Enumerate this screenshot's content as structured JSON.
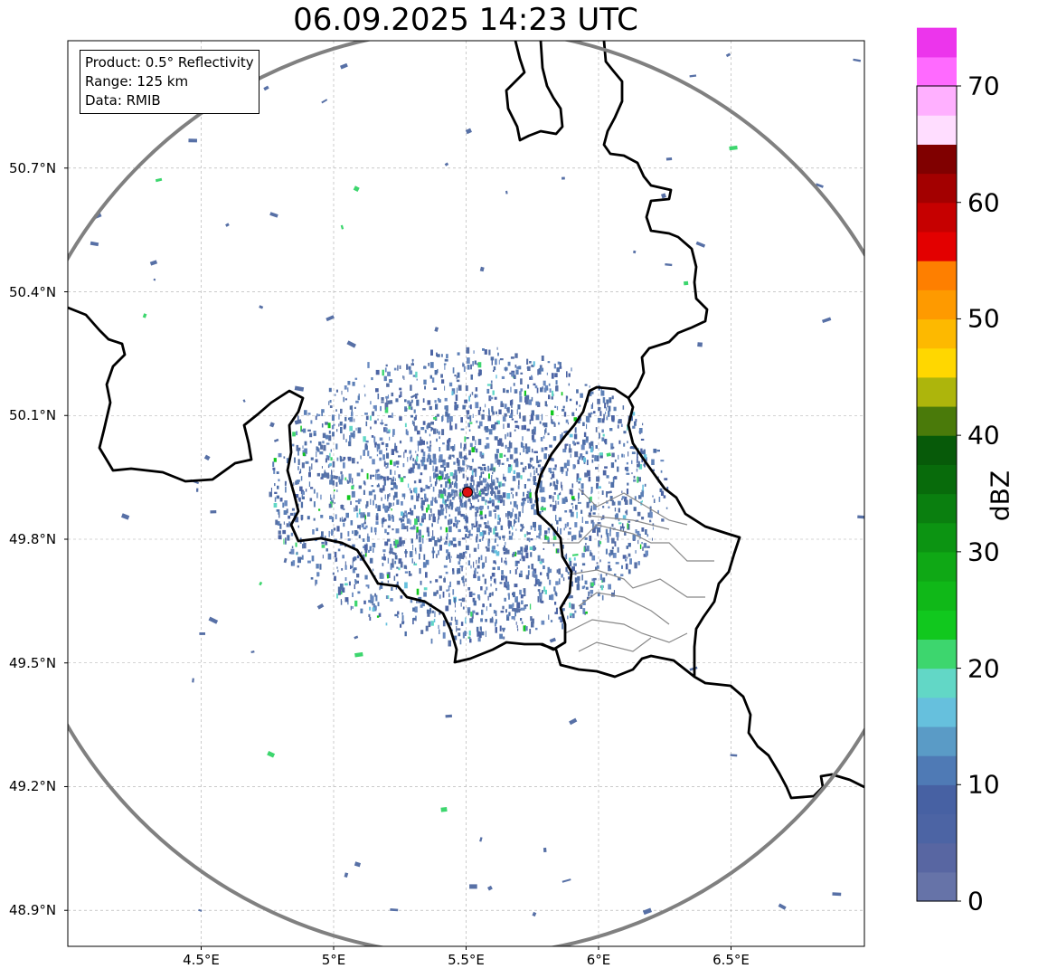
{
  "title": "06.09.2025 14:23 UTC",
  "info": {
    "product": "Product: 0.5° Reflectivity",
    "range": "Range: 125 km",
    "source": "Data: RMIB"
  },
  "map": {
    "lon_range": [
      4.0,
      7.0
    ],
    "lat_range": [
      48.8,
      51.0
    ],
    "lat_ticks": [
      "50.7°N",
      "50.4°N",
      "50.1°N",
      "49.8°N",
      "49.5°N",
      "49.2°N",
      "48.9°N"
    ],
    "lon_ticks": [
      "4.5°E",
      "5°E",
      "5.5°E",
      "6°E",
      "6.5°E"
    ],
    "radar_site": {
      "lon": 5.505,
      "lat": 49.914
    },
    "range_ring_km": 125,
    "grid": true
  },
  "colorbar": {
    "label": "dBZ",
    "ticks": [
      "0",
      "10",
      "20",
      "30",
      "40",
      "50",
      "60",
      "70"
    ],
    "range": [
      0,
      70
    ],
    "step": 2.5,
    "colors": [
      "#6673a8",
      "#5866a2",
      "#4c64a4",
      "#4761a3",
      "#4f7ab5",
      "#5a9bc6",
      "#66c0dd",
      "#62d7c6",
      "#3dd66e",
      "#11c81e",
      "#10b818",
      "#0fa815",
      "#0c9412",
      "#0a7f0f",
      "#086b0b",
      "#075a09",
      "#4a7a0a",
      "#adb50c",
      "#ffd700",
      "#fdb900",
      "#fe9a00",
      "#fe7f00",
      "#e30000",
      "#c60000",
      "#a30000",
      "#800000",
      "#ffddff",
      "#ffb0ff",
      "#ff6aff",
      "#ec35ec"
    ]
  }
}
